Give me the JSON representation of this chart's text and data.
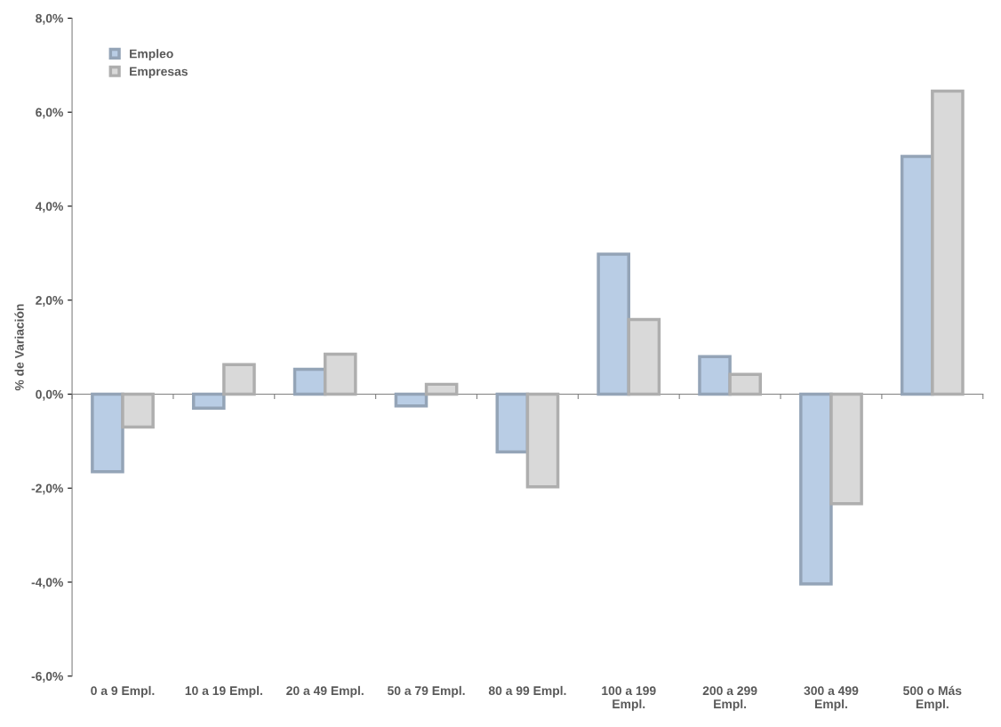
{
  "chart_data": {
    "type": "bar",
    "ylabel": "% de Variación",
    "categories": [
      "0 a 9 Empl.",
      "10 a 19 Empl.",
      "20 a 49 Empl.",
      "50 a 79 Empl.",
      "80 a 99 Empl.",
      "100 a 199\nEmpl.",
      "200 a 299\nEmpl.",
      "300 a 499\nEmpl.",
      "500 o Más\nEmpl."
    ],
    "series": [
      {
        "name": "Empleo",
        "color": "#b9cde5",
        "values": [
          -1.65,
          -0.3,
          0.53,
          -0.25,
          -1.23,
          2.98,
          0.8,
          -4.04,
          5.06
        ]
      },
      {
        "name": "Empresas",
        "color": "#d9d9d9",
        "values": [
          -0.7,
          0.63,
          0.85,
          0.21,
          -1.97,
          1.59,
          0.42,
          -2.33,
          6.45
        ]
      }
    ],
    "ylim": [
      -6,
      8
    ],
    "yticks": [
      {
        "value": -6,
        "label": "-6,0%"
      },
      {
        "value": -4,
        "label": "-4,0%"
      },
      {
        "value": -2,
        "label": "-2,0%"
      },
      {
        "value": 0,
        "label": "0,0%"
      },
      {
        "value": 2,
        "label": "2,0%"
      },
      {
        "value": 4,
        "label": "4,0%"
      },
      {
        "value": 6,
        "label": "6,0%"
      },
      {
        "value": 8,
        "label": "8,0%"
      }
    ],
    "legend": "top left"
  }
}
